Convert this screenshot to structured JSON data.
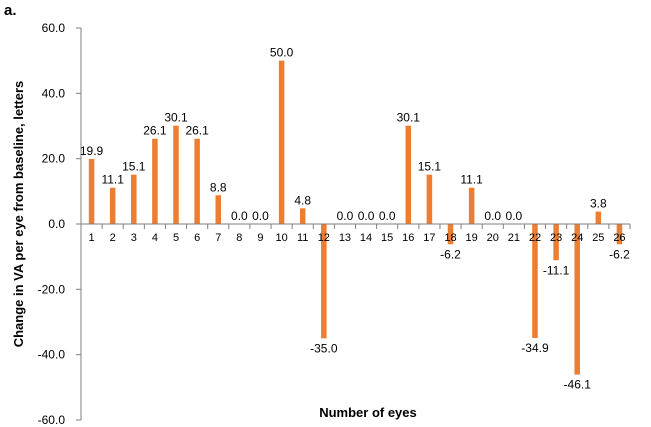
{
  "panel_label": "a.",
  "chart_data": {
    "type": "bar",
    "title": "",
    "xlabel": "Number of eyes",
    "ylabel": "Change in VA per eye from baseline, letters",
    "ylim": [
      -60,
      60
    ],
    "yticks": [
      60,
      40,
      20,
      0,
      -20,
      -40,
      -60
    ],
    "ytick_labels": [
      "60.0",
      "40.0",
      "20.0",
      "0.0",
      "-20.0",
      "-40.0",
      "-60.0"
    ],
    "categories": [
      "1",
      "2",
      "3",
      "4",
      "5",
      "6",
      "7",
      "8",
      "9",
      "10",
      "11",
      "12",
      "13",
      "14",
      "15",
      "16",
      "17",
      "18",
      "19",
      "20",
      "21",
      "22",
      "23",
      "24",
      "25",
      "26"
    ],
    "values": [
      19.9,
      11.1,
      15.1,
      26.1,
      30.1,
      26.1,
      8.8,
      0.0,
      0.0,
      50.0,
      4.8,
      -35.0,
      0.0,
      0.0,
      0.0,
      30.1,
      15.1,
      -6.2,
      11.1,
      0.0,
      0.0,
      -34.9,
      -11.1,
      -46.1,
      3.8,
      -6.2
    ],
    "data_labels": [
      "19.9",
      "11.1",
      "15.1",
      "26.1",
      "30.1",
      "26.1",
      "8.8",
      "0.0",
      "0.0",
      "50.0",
      "4.8",
      "-35.0",
      "0.0",
      "0.0",
      "0.0",
      "30.1",
      "15.1",
      "-6.2",
      "11.1",
      "0.0",
      "0.0",
      "-34.9",
      "-11.1",
      "-46.1",
      "3.8",
      "-6.2"
    ],
    "bar_color": "#ED7D31",
    "axis_color": "#7F7F7F",
    "grid": false,
    "legend": "none"
  }
}
